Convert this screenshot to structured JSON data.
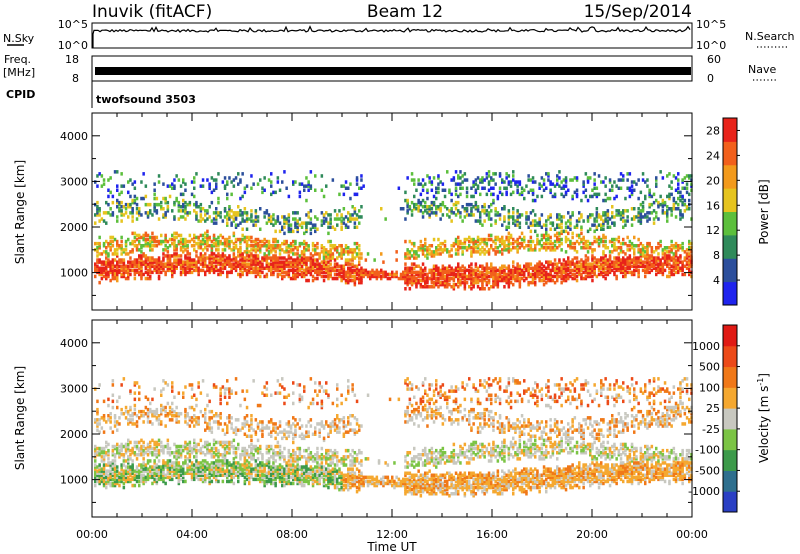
{
  "header": {
    "station": "Inuvik (fitACF)",
    "beam": "Beam 12",
    "date": "15/Sep/2014"
  },
  "noise_panel": {
    "left_label": "N.Sky",
    "left_ticks": [
      "10^5",
      "10^0"
    ],
    "right_label": "N.Search",
    "right_ticks": [
      "10^5",
      "10^0"
    ]
  },
  "freq_panel": {
    "left_label_top": "Freq.",
    "left_label_unit": "[MHz]",
    "left_ticks": [
      "18",
      "8"
    ],
    "right_label": "Nave",
    "right_ticks": [
      "60",
      "0"
    ]
  },
  "cpid": {
    "label": "CPID",
    "program": "twofsound 3503"
  },
  "chart_data": [
    {
      "type": "heatmap",
      "title": "",
      "xlabel": "Time UT",
      "ylabel": "Slant Range [km]",
      "x_ticks": [
        "00:00",
        "04:00",
        "08:00",
        "12:00",
        "16:00",
        "20:00",
        "00:00"
      ],
      "xlim_hours": [
        0,
        24
      ],
      "ylim_km": [
        180,
        4500
      ],
      "y_ticks": [
        "1000",
        "2000",
        "3000",
        "4000"
      ],
      "colorbar_label": "Power [dB]",
      "colorbar_ticks": [
        "4",
        "8",
        "12",
        "16",
        "20",
        "24",
        "28"
      ],
      "colorbar_range": [
        0,
        30
      ],
      "colors": [
        "#1f24ee",
        "#2c4f9c",
        "#2f8a5a",
        "#5cbf3c",
        "#e6c41f",
        "#f39a1c",
        "#f2601c",
        "#e8231a"
      ]
    },
    {
      "type": "heatmap",
      "title": "",
      "xlabel": "Time UT",
      "ylabel": "Slant Range [km]",
      "x_ticks": [
        "00:00",
        "04:00",
        "08:00",
        "12:00",
        "16:00",
        "20:00",
        "00:00"
      ],
      "xlim_hours": [
        0,
        24
      ],
      "ylim_km": [
        180,
        4500
      ],
      "y_ticks": [
        "1000",
        "2000",
        "3000",
        "4000"
      ],
      "colorbar_label": "Velocity [m s",
      "colorbar_label_sup": "-1",
      "colorbar_label_end": "]",
      "colorbar_ticks": [
        "1000",
        "500",
        "100",
        "25",
        "-25",
        "-100",
        "-500",
        "-1000"
      ],
      "colors": [
        "#2a3fc4",
        "#2e6f8e",
        "#3c9a4a",
        "#7bc444",
        "#c8c8c0",
        "#f5a830",
        "#f07818",
        "#ec4a18",
        "#e01a14"
      ]
    }
  ]
}
